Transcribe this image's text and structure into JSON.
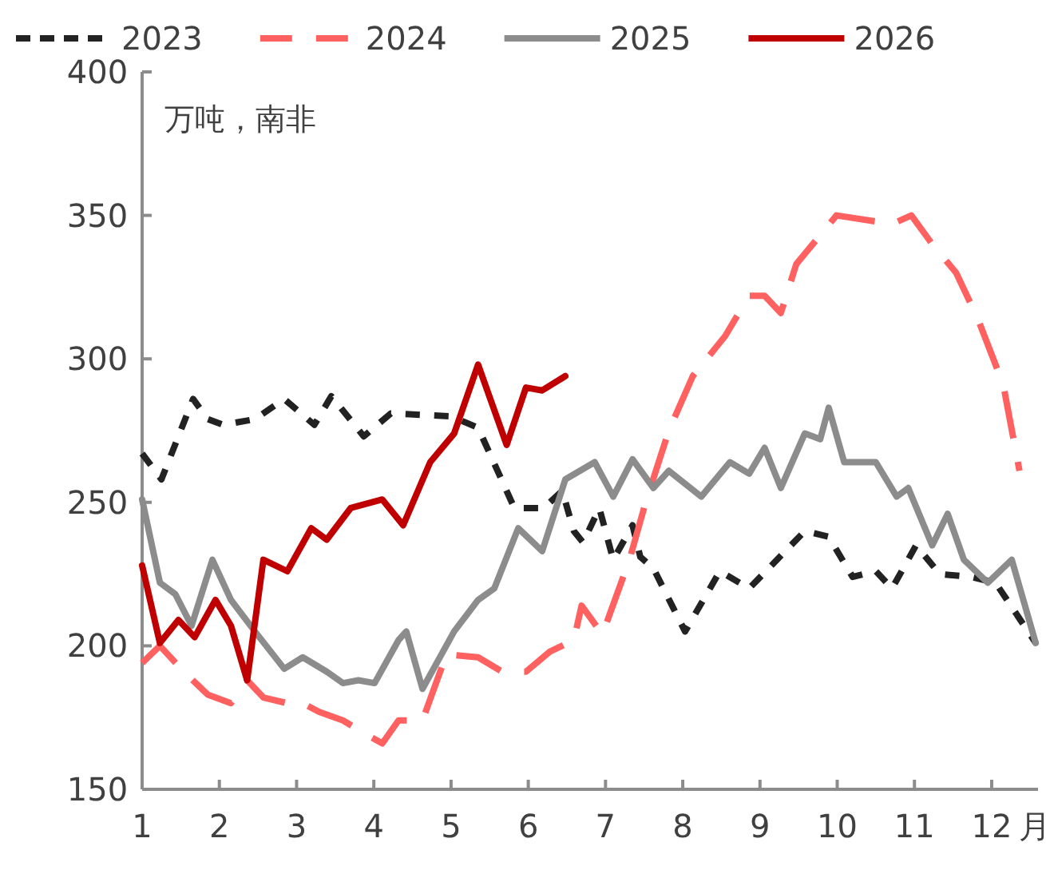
{
  "chart_data": {
    "type": "line",
    "xlabel": "月",
    "ylabel": "万吨，南非",
    "xlim": [
      1,
      12.6
    ],
    "xticks": [
      1,
      2,
      3,
      4,
      5,
      6,
      7,
      8,
      9,
      10,
      11,
      12
    ],
    "ylim": [
      150,
      400
    ],
    "yticks": [
      150,
      200,
      250,
      300,
      350,
      400
    ],
    "grid": false,
    "legend": "top",
    "series": [
      {
        "name": "2023",
        "color": "#222222",
        "line_style": "dotted",
        "x": [
          1.0,
          1.25,
          1.66,
          1.85,
          2.05,
          2.46,
          2.84,
          3.23,
          3.45,
          3.87,
          4.22,
          5.0,
          5.35,
          5.82,
          6.2,
          6.44,
          6.59,
          6.71,
          6.92,
          7.1,
          7.35,
          7.45,
          7.62,
          8.03,
          8.48,
          8.86,
          9.58,
          9.89,
          10.2,
          10.5,
          10.71,
          11.02,
          11.33,
          11.74,
          12.05,
          12.57
        ],
        "values": [
          267,
          258,
          286,
          279,
          277,
          279,
          286,
          277,
          287,
          273,
          281,
          280,
          276,
          248,
          248,
          254,
          240,
          236,
          248,
          230,
          242,
          231,
          227,
          205,
          226,
          220,
          240,
          238,
          224,
          226,
          220,
          235,
          225,
          224,
          222,
          201
        ]
      },
      {
        "name": "2024",
        "color": "#ff6161",
        "line_style": "dashed",
        "x": [
          1.0,
          1.23,
          1.54,
          1.85,
          2.15,
          2.36,
          2.57,
          2.88,
          3.08,
          3.29,
          3.6,
          3.91,
          4.11,
          4.32,
          4.63,
          4.94,
          5.35,
          5.66,
          5.97,
          6.28,
          6.59,
          6.69,
          6.96,
          7.31,
          7.52,
          7.82,
          8.13,
          8.55,
          8.86,
          9.06,
          9.27,
          9.47,
          9.99,
          10.71,
          10.96,
          11.23,
          11.54,
          11.82,
          12.15,
          12.36
        ],
        "values": [
          194,
          200,
          191,
          183,
          180,
          188,
          182,
          180,
          180,
          177,
          174,
          169,
          166,
          174,
          174,
          197,
          196,
          191,
          191,
          198,
          202,
          214,
          204,
          230,
          250,
          275,
          294,
          308,
          322,
          322,
          316,
          333,
          350,
          347,
          350,
          340,
          330,
          314,
          291,
          261
        ]
      },
      {
        "name": "2025",
        "color": "#8c8c8c",
        "line_style": "solid",
        "x": [
          1.0,
          1.23,
          1.43,
          1.64,
          1.91,
          2.15,
          2.46,
          2.84,
          3.08,
          3.39,
          3.6,
          3.8,
          4.01,
          4.32,
          4.42,
          4.63,
          5.04,
          5.35,
          5.56,
          5.87,
          6.18,
          6.48,
          6.86,
          7.1,
          7.35,
          7.62,
          7.82,
          8.24,
          8.61,
          8.86,
          9.06,
          9.27,
          9.58,
          9.78,
          9.89,
          10.09,
          10.5,
          10.77,
          10.92,
          11.23,
          11.43,
          11.64,
          11.95,
          12.26,
          12.57
        ],
        "values": [
          251,
          222,
          218,
          207,
          230,
          216,
          205,
          192,
          196,
          191,
          187,
          188,
          187,
          202,
          205,
          185,
          205,
          216,
          220,
          241,
          233,
          258,
          264,
          252,
          265,
          255,
          261,
          252,
          264,
          260,
          269,
          255,
          274,
          272,
          283,
          264,
          264,
          252,
          255,
          235,
          246,
          230,
          222,
          230,
          201
        ]
      },
      {
        "name": "2026",
        "color": "#c00000",
        "line_style": "solid",
        "x": [
          1.0,
          1.23,
          1.47,
          1.68,
          1.95,
          2.15,
          2.36,
          2.57,
          2.88,
          3.19,
          3.39,
          3.7,
          4.11,
          4.38,
          4.73,
          5.04,
          5.35,
          5.72,
          5.97,
          6.18,
          6.48
        ],
        "values": [
          228,
          201,
          209,
          203,
          216,
          207,
          188,
          230,
          226,
          241,
          237,
          248,
          251,
          242,
          264,
          274,
          298,
          270,
          290,
          289,
          294
        ]
      }
    ]
  }
}
